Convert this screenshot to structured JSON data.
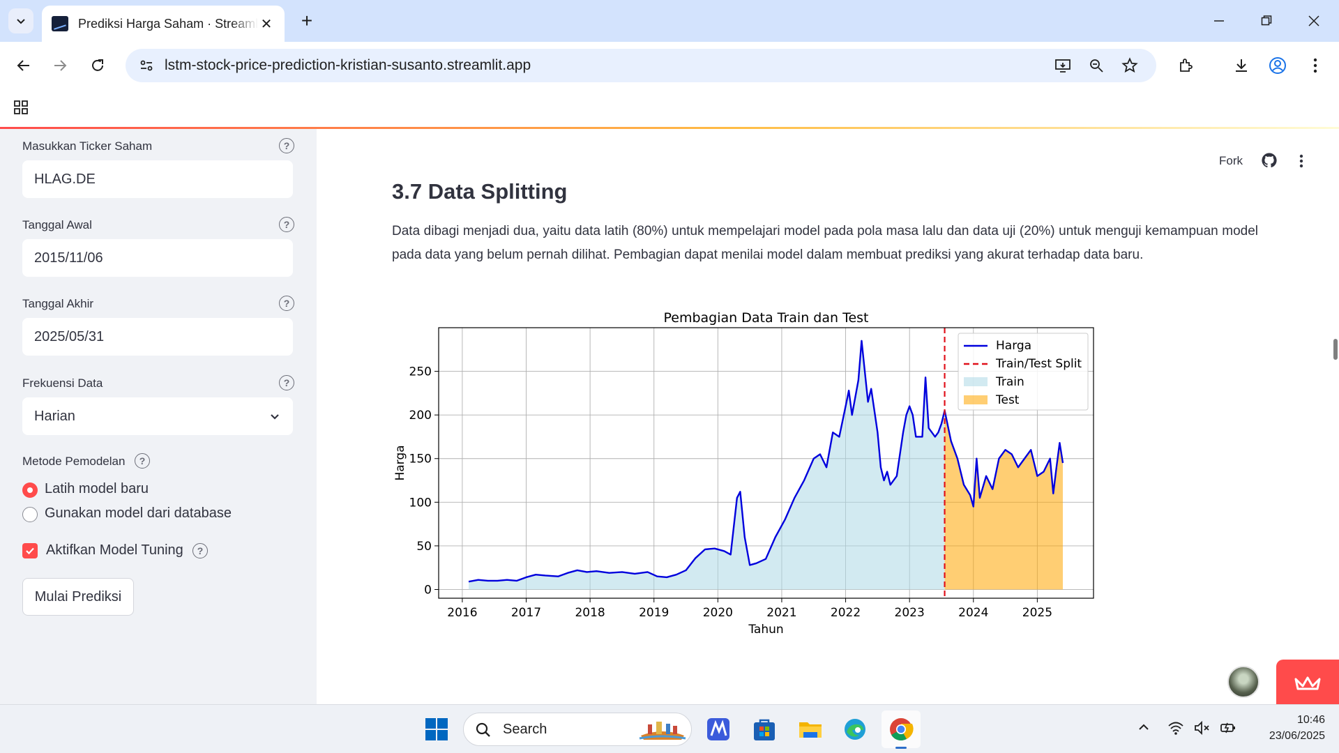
{
  "browser": {
    "tab_title": "Prediksi Harga Saham · Streamlit",
    "tab_close": "✕",
    "new_tab": "+",
    "url": "lstm-stock-price-prediction-kristian-susanto.streamlit.app"
  },
  "sidebar": {
    "ticker": {
      "label": "Masukkan Ticker Saham",
      "value": "HLAG.DE"
    },
    "start_date": {
      "label": "Tanggal Awal",
      "value": "2015/11/06"
    },
    "end_date": {
      "label": "Tanggal Akhir",
      "value": "2025/05/31"
    },
    "frequency": {
      "label": "Frekuensi Data",
      "value": "Harian"
    },
    "method": {
      "label": "Metode Pemodelan",
      "options": [
        "Latih model baru",
        "Gunakan model dari database"
      ],
      "selected": "Latih model baru"
    },
    "tuning": {
      "label": "Aktifkan Model Tuning",
      "checked": true
    },
    "run_button": "Mulai Prediksi",
    "help_glyph": "?"
  },
  "header": {
    "fork_label": "Fork"
  },
  "main": {
    "heading": "3.7 Data Splitting",
    "paragraph": "Data dibagi menjadi dua, yaitu data latih (80%) untuk mempelajari model pada pola masa lalu dan data uji (20%) untuk menguji kemampuan model pada data yang belum pernah dilihat. Pembagian dapat menilai model dalam membuat prediksi yang akurat terhadap data baru."
  },
  "chart_data": {
    "type": "line",
    "title": "Pembagian Data Train dan Test",
    "xlabel": "Tahun",
    "ylabel": "Harga",
    "xlim": [
      2015.63,
      2025.88
    ],
    "ylim": [
      -10,
      300
    ],
    "xticks": [
      "2016",
      "2017",
      "2018",
      "2019",
      "2020",
      "2021",
      "2022",
      "2023",
      "2024",
      "2025"
    ],
    "yticks": [
      0,
      50,
      100,
      150,
      200,
      250
    ],
    "grid": true,
    "legend_position": "top-right",
    "legend": [
      "Harga",
      "Train/Test Split",
      "Train",
      "Test"
    ],
    "split_x": 2023.55,
    "colors": {
      "price": "#0000dd",
      "split": "#e0101a",
      "train": "#add8e6",
      "test": "#ffa500"
    },
    "x": [
      2016.1,
      2016.25,
      2016.4,
      2016.55,
      2016.7,
      2016.85,
      2017.0,
      2017.15,
      2017.3,
      2017.5,
      2017.65,
      2017.8,
      2017.95,
      2018.1,
      2018.3,
      2018.5,
      2018.7,
      2018.9,
      2019.05,
      2019.2,
      2019.35,
      2019.5,
      2019.65,
      2019.8,
      2019.95,
      2020.1,
      2020.2,
      2020.3,
      2020.35,
      2020.42,
      2020.5,
      2020.6,
      2020.75,
      2020.9,
      2021.05,
      2021.2,
      2021.35,
      2021.5,
      2021.6,
      2021.7,
      2021.8,
      2021.9,
      2022.0,
      2022.05,
      2022.1,
      2022.2,
      2022.25,
      2022.3,
      2022.35,
      2022.4,
      2022.45,
      2022.5,
      2022.55,
      2022.6,
      2022.65,
      2022.7,
      2022.8,
      2022.9,
      2022.95,
      2023.0,
      2023.05,
      2023.1,
      2023.2,
      2023.25,
      2023.3,
      2023.4,
      2023.45,
      2023.5,
      2023.55,
      2023.65,
      2023.75,
      2023.85,
      2023.95,
      2024.0,
      2024.05,
      2024.1,
      2024.2,
      2024.3,
      2024.4,
      2024.5,
      2024.6,
      2024.7,
      2024.8,
      2024.9,
      2025.0,
      2025.1,
      2025.2,
      2025.25,
      2025.3,
      2025.35,
      2025.4
    ],
    "values": [
      9,
      11,
      10,
      10,
      11,
      10,
      14,
      17,
      16,
      15,
      19,
      22,
      20,
      21,
      19,
      20,
      18,
      20,
      15,
      14,
      17,
      22,
      36,
      46,
      47,
      44,
      40,
      105,
      112,
      60,
      28,
      30,
      35,
      60,
      80,
      105,
      125,
      150,
      155,
      140,
      180,
      175,
      210,
      228,
      200,
      240,
      285,
      250,
      215,
      230,
      205,
      180,
      140,
      125,
      135,
      120,
      130,
      180,
      200,
      210,
      200,
      175,
      175,
      243,
      185,
      175,
      180,
      190,
      205,
      170,
      150,
      120,
      108,
      95,
      150,
      105,
      130,
      115,
      150,
      160,
      155,
      140,
      150,
      160,
      130,
      135,
      150,
      110,
      140,
      168,
      145
    ]
  }
}
